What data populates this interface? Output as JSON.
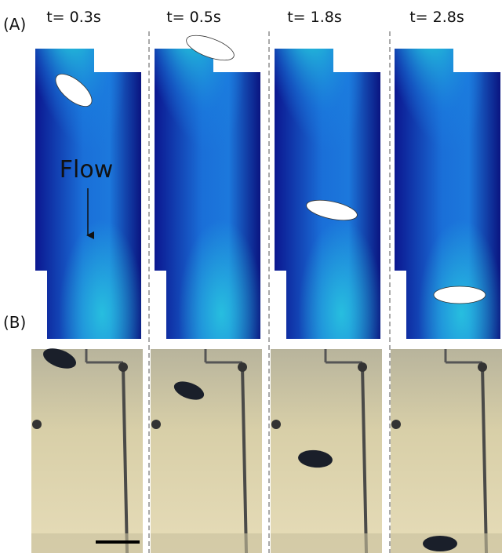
{
  "panel_labels": {
    "a": "(A)",
    "b": "(B)"
  },
  "times": [
    "t= 0.3s",
    "t= 0.5s",
    "t= 1.8s",
    "t= 2.8s"
  ],
  "annotation": "Flow"
}
